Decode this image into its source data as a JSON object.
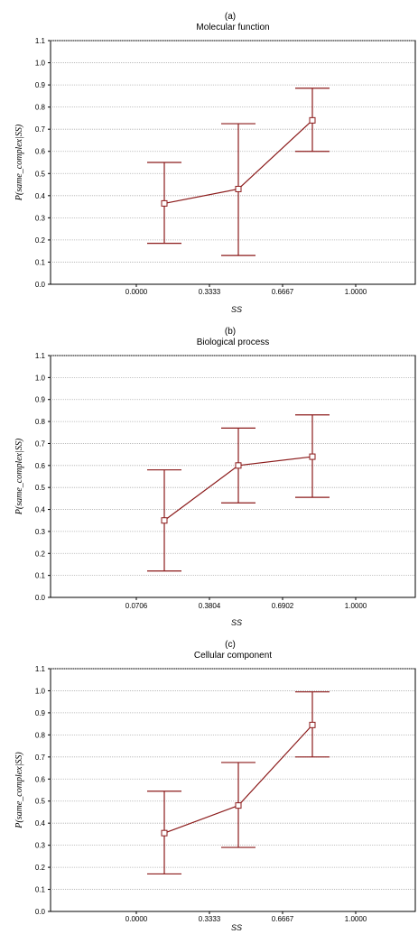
{
  "colors": {
    "series": "#8b1a1a",
    "grid": "#b0b0b0",
    "axis": "#000000"
  },
  "chart_data": [
    {
      "type": "line",
      "panel": "(a)",
      "title": "Molecular function",
      "xlabel": "SS",
      "ylabel": "P(same_complex|SS)",
      "xticks": [
        "0.0000",
        "0.3333",
        "0.6667",
        "1.0000"
      ],
      "yticks": [
        "0.0",
        "0.1",
        "0.2",
        "0.3",
        "0.4",
        "0.5",
        "0.6",
        "0.7",
        "0.8",
        "0.9",
        "1.0",
        "1.1"
      ],
      "ylim": [
        0,
        1.1
      ],
      "grid": true,
      "points": [
        {
          "x": 1,
          "y": 0.365,
          "low": 0.185,
          "high": 0.55
        },
        {
          "x": 2,
          "y": 0.43,
          "low": 0.13,
          "high": 0.725
        },
        {
          "x": 3,
          "y": 0.74,
          "low": 0.6,
          "high": 0.885
        }
      ]
    },
    {
      "type": "line",
      "panel": "(b)",
      "title": "Biological process",
      "xlabel": "SS",
      "ylabel": "P(same_complex|SS)",
      "xticks": [
        "0.0706",
        "0.3804",
        "0.6902",
        "1.0000"
      ],
      "yticks": [
        "0.0",
        "0.1",
        "0.2",
        "0.3",
        "0.4",
        "0.5",
        "0.6",
        "0.7",
        "0.8",
        "0.9",
        "1.0",
        "1.1"
      ],
      "ylim": [
        0,
        1.1
      ],
      "grid": true,
      "points": [
        {
          "x": 1,
          "y": 0.35,
          "low": 0.12,
          "high": 0.58
        },
        {
          "x": 2,
          "y": 0.6,
          "low": 0.43,
          "high": 0.77
        },
        {
          "x": 3,
          "y": 0.64,
          "low": 0.455,
          "high": 0.83
        }
      ]
    },
    {
      "type": "line",
      "panel": "(c)",
      "title": "Cellular component",
      "xlabel": "SS",
      "ylabel": "P(same_complex|SS)",
      "xticks": [
        "0.0000",
        "0.3333",
        "0.6667",
        "1.0000"
      ],
      "yticks": [
        "0.0",
        "0.1",
        "0.2",
        "0.3",
        "0.4",
        "0.5",
        "0.6",
        "0.7",
        "0.8",
        "0.9",
        "1.0",
        "1.1"
      ],
      "ylim": [
        0,
        1.1
      ],
      "grid": true,
      "points": [
        {
          "x": 1,
          "y": 0.355,
          "low": 0.17,
          "high": 0.545
        },
        {
          "x": 2,
          "y": 0.48,
          "low": 0.29,
          "high": 0.675
        },
        {
          "x": 3,
          "y": 0.845,
          "low": 0.7,
          "high": 0.995
        }
      ]
    }
  ]
}
